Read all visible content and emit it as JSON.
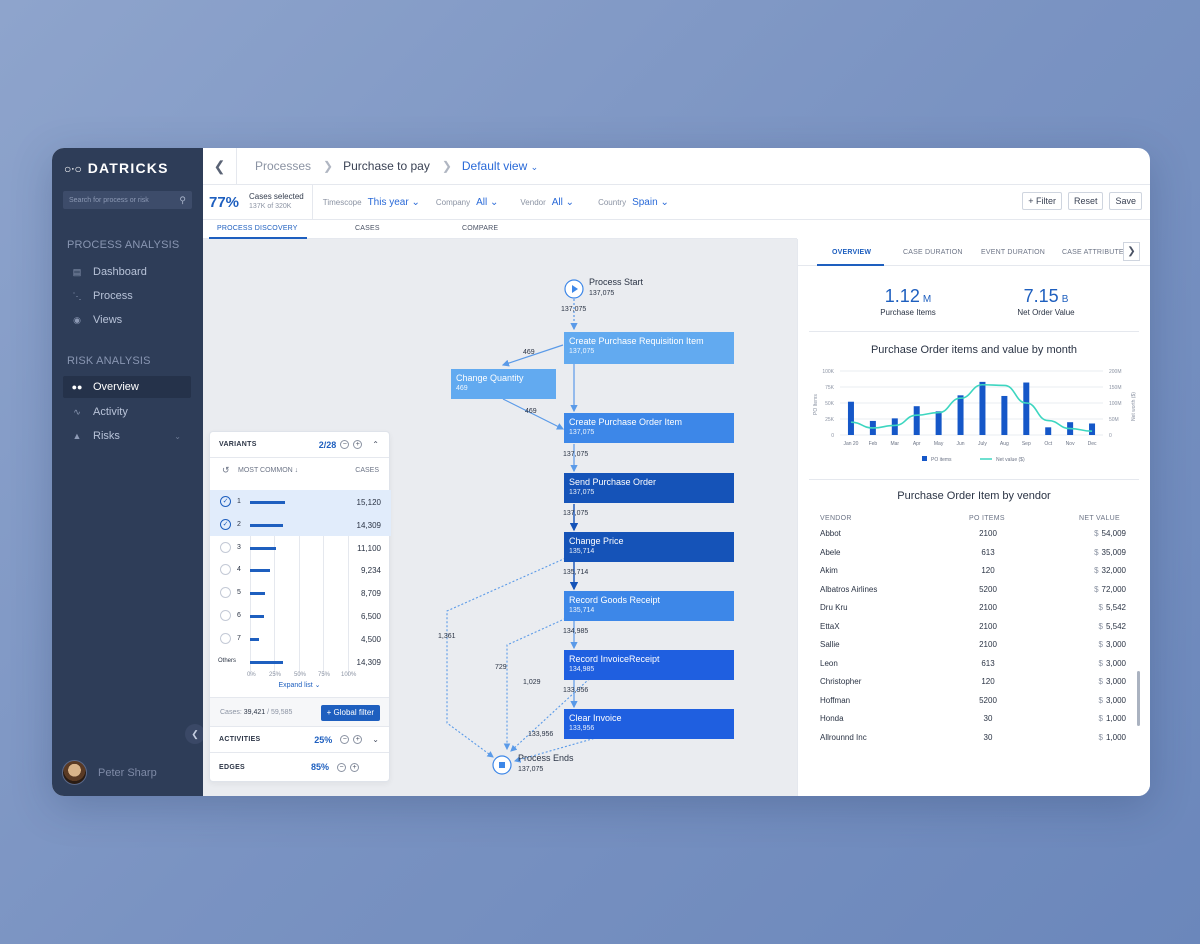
{
  "app": {
    "logo_text": "DATRICKS",
    "search_placeholder": "Search for process or risk"
  },
  "sidebar": {
    "section_process": "PROCESS ANALYSIS",
    "section_risk": "RISK ANALYSIS",
    "process_items": [
      {
        "label": "Dashboard",
        "icon": "dashboard-icon"
      },
      {
        "label": "Process",
        "icon": "process-icon"
      },
      {
        "label": "Views",
        "icon": "eye-icon"
      }
    ],
    "risk_items": [
      {
        "label": "Overview",
        "icon": "binoculars-icon",
        "active": true
      },
      {
        "label": "Activity",
        "icon": "activity-icon"
      },
      {
        "label": "Risks",
        "icon": "warning-icon"
      }
    ],
    "user_name": "Peter Sharp"
  },
  "header": {
    "crumbs": [
      "Processes",
      "Purchase to pay",
      "Default view"
    ]
  },
  "filters": {
    "percent": "77%",
    "cases_selected_label": "Cases selected",
    "cases_selected_sub": "137K of 320K",
    "timescope_label": "Timescope",
    "timescope_value": "This year",
    "company_label": "Company",
    "company_value": "All",
    "vendor_label": "Vendor",
    "vendor_value": "All",
    "country_label": "Country",
    "country_value": "Spain",
    "filter_btn": "+ Filter",
    "reset_btn": "Reset",
    "save_btn": "Save"
  },
  "tabs": [
    "PROCESS DISCOVERY",
    "CASES",
    "COMPARE"
  ],
  "process_map": {
    "start": {
      "label": "Process Start",
      "value": "137,075"
    },
    "end": {
      "label": "Process Ends",
      "value": "137,075"
    },
    "nodes": [
      {
        "label": "Create Purchase Requisition Item",
        "value": "137,075",
        "color": "#62aaf0"
      },
      {
        "label": "Change Quantity",
        "value": "469",
        "color": "#62aaf0"
      },
      {
        "label": "Create Purchase Order Item",
        "value": "137,075",
        "color": "#3d87e8"
      },
      {
        "label": "Send Purchase Order",
        "value": "137,075",
        "color": "#1553b8"
      },
      {
        "label": "Change Price",
        "value": "135,714",
        "color": "#1553b8"
      },
      {
        "label": "Record Goods Receipt",
        "value": "135,714",
        "color": "#3d87e8"
      },
      {
        "label": "Record InvoiceReceipt",
        "value": "134,985",
        "color": "#1f5fe0"
      },
      {
        "label": "Clear Invoice",
        "value": "133,956",
        "color": "#1f5fe0"
      }
    ],
    "edge_labels": [
      "137,075",
      "469",
      "469",
      "137,075",
      "137,075",
      "135,714",
      "134,985",
      "133,956",
      "133,956",
      "1,361",
      "729",
      "1,029"
    ]
  },
  "variants": {
    "title": "VARIANTS",
    "count": "2/28",
    "sub_left": "MOST COMMON",
    "sub_right": "CASES",
    "rows": [
      {
        "idx": "1",
        "cases": "15,120",
        "frac": 0.36,
        "selected": true
      },
      {
        "idx": "2",
        "cases": "14,309",
        "frac": 0.34,
        "selected": true
      },
      {
        "idx": "3",
        "cases": "11,100",
        "frac": 0.27,
        "selected": false
      },
      {
        "idx": "4",
        "cases": "9,234",
        "frac": 0.2,
        "selected": false
      },
      {
        "idx": "5",
        "cases": "8,709",
        "frac": 0.15,
        "selected": false
      },
      {
        "idx": "6",
        "cases": "6,500",
        "frac": 0.14,
        "selected": false
      },
      {
        "idx": "7",
        "cases": "4,500",
        "frac": 0.09,
        "selected": false
      },
      {
        "idx": "Others",
        "cases": "14,309",
        "frac": 0.34,
        "selected": false,
        "others": true
      }
    ],
    "axis_ticks": [
      "0%",
      "25%",
      "50%",
      "75%",
      "100%"
    ],
    "expand_label": "Expand list",
    "footer_label": "Cases:",
    "footer_value": "39,421",
    "footer_total": "/ 59,585",
    "global_filter": "+ Global filter",
    "activities_label": "ACTIVITIES",
    "activities_value": "25%",
    "edges_label": "EDGES",
    "edges_value": "85%"
  },
  "right": {
    "tabs": [
      "OVERVIEW",
      "CASE DURATION",
      "EVENT DURATION",
      "CASE ATTRIBUTE"
    ],
    "kpi1_value": "1.12",
    "kpi1_unit": "M",
    "kpi1_label": "Purchase Items",
    "kpi2_value": "7.15",
    "kpi2_unit": "B",
    "kpi2_label": "Net Order Value",
    "chart_title": "Purchase Order items and value by month",
    "table_title": "Purchase Order Item by vendor",
    "table_headers": [
      "VENDOR",
      "PO ITEMS",
      "NET VALUE"
    ],
    "vendors": [
      {
        "name": "Abbot",
        "items": "2100",
        "value": "54,009"
      },
      {
        "name": "Abele",
        "items": "613",
        "value": "35,009"
      },
      {
        "name": "Akim",
        "items": "120",
        "value": "32,000"
      },
      {
        "name": "Albatros Airlines",
        "items": "5200",
        "value": "72,000"
      },
      {
        "name": "Dru Kru",
        "items": "2100",
        "value": "5,542"
      },
      {
        "name": "EttaX",
        "items": "2100",
        "value": "5,542"
      },
      {
        "name": "Sallie",
        "items": "2100",
        "value": "3,000"
      },
      {
        "name": "Leon",
        "items": "613",
        "value": "3,000"
      },
      {
        "name": "Christopher",
        "items": "120",
        "value": "3,000"
      },
      {
        "name": "Hoffman",
        "items": "5200",
        "value": "3,000"
      },
      {
        "name": "Honda",
        "items": "30",
        "value": "1,000"
      },
      {
        "name": "Allrounnd Inc",
        "items": "30",
        "value": "1,000"
      }
    ],
    "currency": "$"
  },
  "chart_data": {
    "type": "bar",
    "title": "Purchase Order items and value by month",
    "categories": [
      "Jan 20",
      "Feb",
      "Mar",
      "Apr",
      "May",
      "Jun",
      "July",
      "Aug",
      "Sep",
      "Oct",
      "Nov",
      "Dec"
    ],
    "series": [
      {
        "name": "PO items",
        "type": "bar",
        "axis": "left",
        "values": [
          52000,
          22000,
          26000,
          45000,
          37000,
          62000,
          83000,
          61000,
          82000,
          12000,
          20000,
          18000
        ]
      },
      {
        "name": "Net value ($)",
        "type": "line",
        "axis": "right",
        "values": [
          40,
          22,
          30,
          62,
          70,
          115,
          157,
          155,
          100,
          45,
          20,
          12
        ]
      }
    ],
    "ylabel": "PO Items",
    "y2label": "Net worth ($)",
    "ylim": [
      0,
      100000
    ],
    "y2lim": [
      0,
      200
    ],
    "yticks": [
      "100K",
      "75K",
      "50K",
      "25K",
      "0"
    ],
    "y2ticks": [
      "200M",
      "150M",
      "100M",
      "50M",
      "0"
    ],
    "grid": true,
    "legend_position": "bottom",
    "colors": {
      "bars": "#1557c8",
      "line": "#3dd6c0"
    }
  }
}
